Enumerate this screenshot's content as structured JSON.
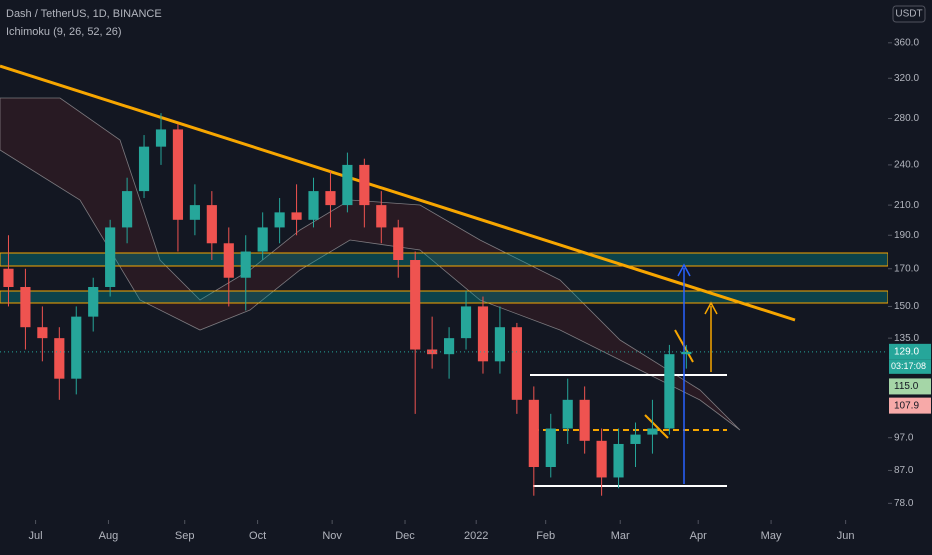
{
  "header": {
    "title": "Dash / TetherUS, 1D, BINANCE",
    "indicator": "Ichimoku (9, 26, 52, 26)",
    "currency": "USDT"
  },
  "chart_data": {
    "type": "candlestick",
    "open": [
      170,
      160,
      140,
      135,
      118,
      145,
      160,
      195,
      220,
      255,
      270,
      200,
      210,
      185,
      165,
      180,
      195,
      205,
      200,
      220,
      210,
      240,
      210,
      195,
      175,
      130,
      128,
      135,
      150,
      125,
      140,
      110,
      88,
      100,
      110,
      96,
      85,
      95,
      98,
      100,
      128
    ],
    "high": [
      190,
      170,
      150,
      140,
      150,
      165,
      200,
      230,
      265,
      285,
      275,
      225,
      220,
      195,
      190,
      205,
      215,
      225,
      230,
      235,
      250,
      245,
      220,
      200,
      180,
      145,
      140,
      158,
      155,
      150,
      142,
      115,
      105,
      118,
      115,
      100,
      100,
      102,
      110,
      132,
      132
    ],
    "low": [
      150,
      130,
      125,
      110,
      112,
      138,
      155,
      185,
      215,
      240,
      180,
      190,
      175,
      150,
      148,
      175,
      185,
      190,
      195,
      195,
      205,
      195,
      185,
      165,
      105,
      122,
      118,
      130,
      120,
      120,
      105,
      80,
      85,
      95,
      92,
      80,
      82,
      88,
      92,
      98,
      122
    ],
    "close": [
      160,
      140,
      135,
      118,
      145,
      160,
      195,
      220,
      255,
      270,
      200,
      210,
      185,
      165,
      180,
      195,
      205,
      200,
      220,
      210,
      240,
      210,
      195,
      175,
      130,
      128,
      135,
      150,
      125,
      140,
      110,
      88,
      100,
      110,
      96,
      85,
      95,
      98,
      100,
      128,
      129
    ],
    "up_color": "#26a69a",
    "down_color": "#ef5350",
    "log_scale": true,
    "ylim": [
      73.8,
      415
    ],
    "yticks": [
      {
        "value": 360,
        "label": "360.0"
      },
      {
        "value": 320,
        "label": "320.0"
      },
      {
        "value": 280,
        "label": "280.0"
      },
      {
        "value": 240,
        "label": "240.0"
      },
      {
        "value": 210,
        "label": "210.0"
      },
      {
        "value": 190,
        "label": "190.0"
      },
      {
        "value": 170,
        "label": "170.0"
      },
      {
        "value": 150,
        "label": "150.0"
      },
      {
        "value": 135,
        "label": "135.0"
      },
      {
        "value": 97,
        "label": "97.0"
      },
      {
        "value": 87,
        "label": "87.0"
      },
      {
        "value": 78,
        "label": "78.0"
      }
    ],
    "xlim": [
      -0.5,
      51.9
    ],
    "xticks": [
      {
        "value": 1.6,
        "label": "Jul"
      },
      {
        "value": 5.9,
        "label": "Aug"
      },
      {
        "value": 10.4,
        "label": "Sep"
      },
      {
        "value": 14.7,
        "label": "Oct"
      },
      {
        "value": 19.1,
        "label": "Nov"
      },
      {
        "value": 23.4,
        "label": "Dec"
      },
      {
        "value": 27.6,
        "label": "2022"
      },
      {
        "value": 31.7,
        "label": "Feb"
      },
      {
        "value": 36.1,
        "label": "Mar"
      },
      {
        "value": 40.7,
        "label": "Apr"
      },
      {
        "value": 45.0,
        "label": "May"
      },
      {
        "value": 49.4,
        "label": "Jun"
      }
    ],
    "price_labels": [
      {
        "value": 129,
        "label": "129.0",
        "color": "#26a69a",
        "text_color": "#ffffff"
      },
      {
        "value": 115,
        "label": "115.0",
        "color": "#a5d6a7",
        "text_color": "#131722"
      },
      {
        "value": 107.9,
        "label": "107.9",
        "color": "#f7a9a8",
        "text_color": "#131722"
      }
    ],
    "countdown": "03:17:08"
  }
}
